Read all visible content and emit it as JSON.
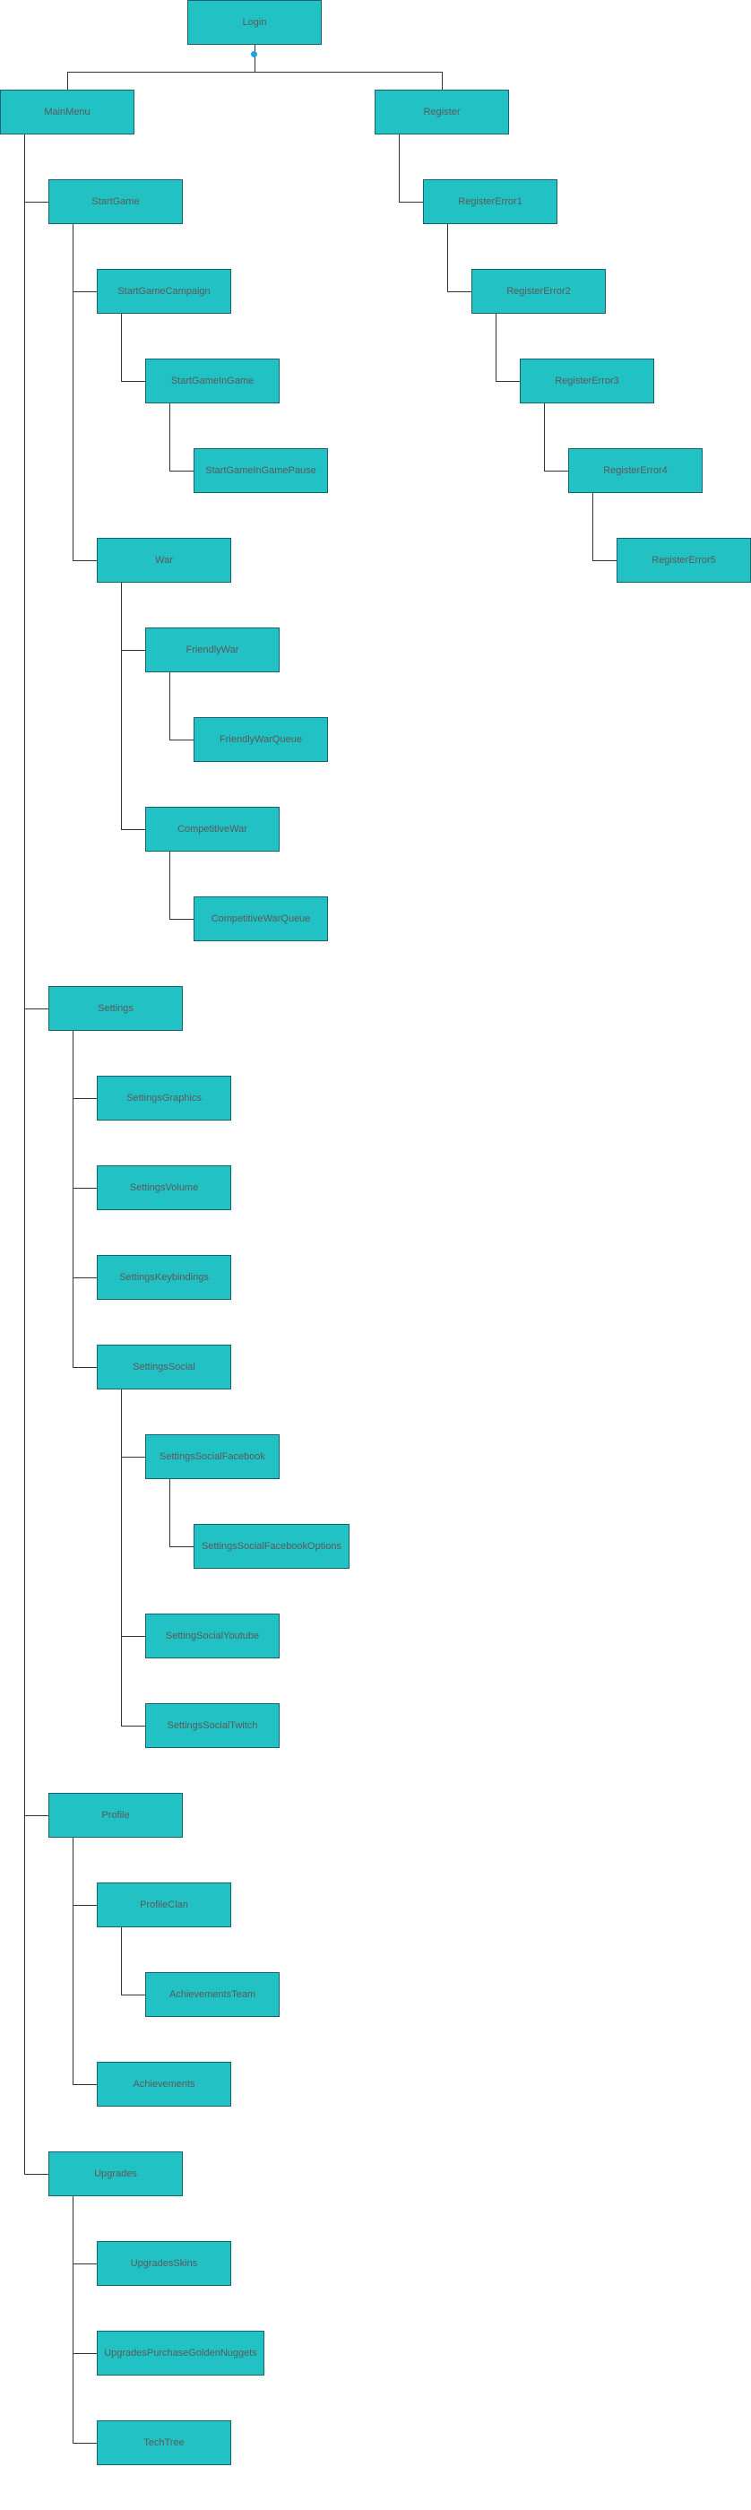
{
  "colors": {
    "node_fill": "#22c1c3",
    "node_text": "#5a5a5a",
    "connector": "#333333",
    "handle": "#1aa7d6"
  },
  "diagram": {
    "nodes": [
      {
        "id": "login",
        "label": "Login"
      },
      {
        "id": "mainmenu",
        "label": "MainMenu"
      },
      {
        "id": "register",
        "label": "Register"
      },
      {
        "id": "registererror1",
        "label": "RegisterError1"
      },
      {
        "id": "registererror2",
        "label": "RegisterError2"
      },
      {
        "id": "registererror3",
        "label": "RegisterError3"
      },
      {
        "id": "registererror4",
        "label": "RegisterError4"
      },
      {
        "id": "registererror5",
        "label": "RegisterError5"
      },
      {
        "id": "startgame",
        "label": "StartGame"
      },
      {
        "id": "startgamecampaign",
        "label": "StartGameCampaign"
      },
      {
        "id": "startgameingame",
        "label": "StartGameInGame"
      },
      {
        "id": "startgameingamepause",
        "label": "StartGameInGamePause"
      },
      {
        "id": "war",
        "label": "War"
      },
      {
        "id": "friendlywar",
        "label": "FriendlyWar"
      },
      {
        "id": "friendlywarqueue",
        "label": "FriendlyWarQueue"
      },
      {
        "id": "competitivewar",
        "label": "CompetitiveWar"
      },
      {
        "id": "competitivewarqueue",
        "label": "CompetitiveWarQueue"
      },
      {
        "id": "settings",
        "label": "Settings"
      },
      {
        "id": "settingsgraphics",
        "label": "SettingsGraphics"
      },
      {
        "id": "settingsvolume",
        "label": "SettingsVolume"
      },
      {
        "id": "settingskeybindings",
        "label": "SettingsKeybindings"
      },
      {
        "id": "settingssocial",
        "label": "SettingsSocial"
      },
      {
        "id": "settingssocialfacebook",
        "label": "SettingsSocialFacebook"
      },
      {
        "id": "settingssocialfacebookoptions",
        "label": "SettingsSocialFacebookOptions"
      },
      {
        "id": "settingsocialyoutube",
        "label": "SettingSocialYoutube"
      },
      {
        "id": "settingssocialtwitch",
        "label": "SettingsSocialTwitch"
      },
      {
        "id": "profile",
        "label": "Profile"
      },
      {
        "id": "profileclan",
        "label": "ProfileClan"
      },
      {
        "id": "achievementsteam",
        "label": "AchievementsTeam"
      },
      {
        "id": "achievements",
        "label": "Achievements"
      },
      {
        "id": "upgrades",
        "label": "Upgrades"
      },
      {
        "id": "upgradesskins",
        "label": "UpgradesSkins"
      },
      {
        "id": "upgradespurchasegoldennuggets",
        "label": "UpgradesPurchaseGoldenNuggets"
      },
      {
        "id": "techtree",
        "label": "TechTree"
      }
    ],
    "edges": [
      [
        "login",
        "mainmenu"
      ],
      [
        "login",
        "register"
      ],
      [
        "register",
        "registererror1"
      ],
      [
        "registererror1",
        "registererror2"
      ],
      [
        "registererror2",
        "registererror3"
      ],
      [
        "registererror3",
        "registererror4"
      ],
      [
        "registererror4",
        "registererror5"
      ],
      [
        "mainmenu",
        "startgame"
      ],
      [
        "mainmenu",
        "settings"
      ],
      [
        "mainmenu",
        "profile"
      ],
      [
        "mainmenu",
        "upgrades"
      ],
      [
        "startgame",
        "startgamecampaign"
      ],
      [
        "startgame",
        "war"
      ],
      [
        "startgamecampaign",
        "startgameingame"
      ],
      [
        "startgameingame",
        "startgameingamepause"
      ],
      [
        "war",
        "friendlywar"
      ],
      [
        "war",
        "competitivewar"
      ],
      [
        "friendlywar",
        "friendlywarqueue"
      ],
      [
        "competitivewar",
        "competitivewarqueue"
      ],
      [
        "settings",
        "settingsgraphics"
      ],
      [
        "settings",
        "settingsvolume"
      ],
      [
        "settings",
        "settingskeybindings"
      ],
      [
        "settings",
        "settingssocial"
      ],
      [
        "settingssocial",
        "settingssocialfacebook"
      ],
      [
        "settingssocial",
        "settingsocialyoutube"
      ],
      [
        "settingssocial",
        "settingssocialtwitch"
      ],
      [
        "settingssocialfacebook",
        "settingssocialfacebookoptions"
      ],
      [
        "profile",
        "profileclan"
      ],
      [
        "profile",
        "achievements"
      ],
      [
        "profileclan",
        "achievementsteam"
      ],
      [
        "upgrades",
        "upgradesskins"
      ],
      [
        "upgrades",
        "upgradespurchasegoldennuggets"
      ],
      [
        "upgrades",
        "techtree"
      ]
    ]
  }
}
